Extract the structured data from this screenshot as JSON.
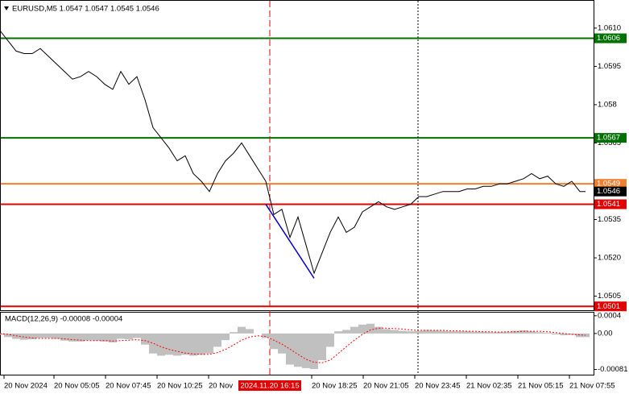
{
  "chart_data": [
    {
      "type": "line",
      "title": "EURUSD,M5  1.0547 1.0547 1.0545 1.0546",
      "xlim": [
        0,
        368.5
      ],
      "ylim": [
        1.04995,
        1.0621
      ],
      "yticks": [
        {
          "value": 1.061,
          "label": "1.0610"
        },
        1.0595,
        1.058,
        1.0565,
        1.0535,
        {
          "value": 1.052,
          "label": "1.0520"
        },
        1.0505
      ],
      "xticks": [
        {
          "value": 2.5,
          "label": "20 Nov 2024"
        },
        {
          "value": 33.5,
          "label": "20 Nov 05:05"
        },
        {
          "value": 65.5,
          "label": "20 Nov 07:45"
        },
        {
          "value": 97.5,
          "label": "20 Nov 10:25"
        },
        {
          "value": 129.5,
          "label": "20 Nov"
        },
        {
          "value": 193.5,
          "label": "20 Nov 18:25"
        },
        {
          "value": 225.5,
          "label": "20 Nov 21:05"
        },
        {
          "value": 257.5,
          "label": "20 Nov 23:45"
        },
        {
          "value": 289.5,
          "label": "21 Nov 02:35"
        },
        {
          "value": 321.5,
          "label": "21 Nov 05:15"
        },
        {
          "value": 353.5,
          "label": "21 Nov 07:55"
        }
      ],
      "x": [
        0,
        5,
        10,
        15,
        20,
        25,
        30,
        35,
        40,
        45,
        50,
        55,
        60,
        65,
        70,
        75,
        80,
        85,
        90,
        95,
        100,
        105,
        110,
        115,
        120,
        125,
        130,
        135,
        140,
        145,
        150,
        155,
        160,
        165,
        170,
        175,
        180,
        185,
        190,
        195,
        200,
        205,
        210,
        215,
        220,
        225,
        230,
        235,
        240,
        245,
        250,
        255,
        260,
        265,
        270,
        275,
        280,
        285,
        290,
        295,
        300,
        305,
        310,
        315,
        320,
        325,
        330,
        335,
        340,
        345,
        350,
        355,
        360,
        363.5
      ],
      "series": [
        {
          "color": "#000000",
          "values": [
            1.0609,
            1.0605,
            1.0601,
            1.06,
            1.06,
            1.0602,
            1.0599,
            1.0596,
            1.0593,
            1.059,
            1.0591,
            1.0593,
            1.0591,
            1.0588,
            1.0586,
            1.0593,
            1.0588,
            1.0591,
            1.0582,
            1.0571,
            1.0567,
            1.0563,
            1.0558,
            1.056,
            1.0553,
            1.055,
            1.0546,
            1.0553,
            1.0558,
            1.0561,
            1.0565,
            1.056,
            1.0555,
            1.055,
            1.0537,
            1.0539,
            1.0528,
            1.0536,
            1.0525,
            1.0514,
            1.0522,
            1.053,
            1.0536,
            1.053,
            1.0532,
            1.0538,
            1.054,
            1.0542,
            1.054,
            1.0539,
            1.054,
            1.0541,
            1.0544,
            1.0544,
            1.0545,
            1.0546,
            1.0546,
            1.0546,
            1.0547,
            1.0547,
            1.0548,
            1.0548,
            1.0549,
            1.0549,
            1.055,
            1.0551,
            1.0553,
            1.0551,
            1.0552,
            1.0549,
            1.0548,
            1.055,
            1.0546,
            1.0546
          ]
        }
      ],
      "levels": [
        {
          "value": 1.0606,
          "color": "#007000"
        },
        {
          "value": 1.0567,
          "color": "#007000"
        },
        {
          "value": 1.0549,
          "color": "#f08030"
        },
        {
          "value": 1.0541,
          "color": "#e00000"
        },
        {
          "value": 1.0501,
          "color": "#e00000"
        }
      ],
      "current_price": 1.0546,
      "vlines": [
        {
          "value": 167.5,
          "color": "#e00000",
          "style": "dashed",
          "label": "2024.11.20 16:15"
        },
        {
          "value": 259.5,
          "color": "#000000",
          "style": "dotted"
        }
      ],
      "trendline": {
        "x": [
          165,
          195
        ],
        "values": [
          1.0541,
          1.0512
        ],
        "color": "#0000cc"
      }
    },
    {
      "type": "bar",
      "title": "MACD(12,26,9) -0.00008 -0.00004",
      "xlim": [
        0,
        368.5
      ],
      "ylim": [
        -0.000927,
        0.00047
      ],
      "yticks": [
        0.0004,
        {
          "value": 0,
          "label": "0.00"
        },
        -0.00081
      ],
      "x": [
        0,
        5,
        10,
        15,
        20,
        25,
        30,
        35,
        40,
        45,
        50,
        55,
        60,
        65,
        70,
        75,
        80,
        85,
        90,
        95,
        100,
        105,
        110,
        115,
        120,
        125,
        130,
        135,
        140,
        145,
        150,
        155,
        160,
        165,
        170,
        175,
        180,
        185,
        190,
        195,
        200,
        205,
        210,
        215,
        220,
        225,
        230,
        235,
        240,
        245,
        250,
        255,
        260,
        265,
        270,
        275,
        280,
        285,
        290,
        295,
        300,
        305,
        310,
        315,
        320,
        325,
        330,
        335,
        340,
        345,
        350,
        355,
        360,
        363.5
      ],
      "series": [
        {
          "type": "bar",
          "color": "#c0c0c0",
          "values": [
            -3e-05,
            -8e-05,
            -0.00012,
            -0.00014,
            -0.00013,
            -0.0001,
            -0.0001,
            -0.00012,
            -0.00016,
            -0.00018,
            -0.00018,
            -0.00015,
            -0.00016,
            -0.00018,
            -0.0002,
            -0.00012,
            -0.00013,
            -0.0001,
            -0.00025,
            -0.00045,
            -0.0005,
            -0.00048,
            -0.0005,
            -0.00048,
            -0.0005,
            -0.00048,
            -0.00045,
            -0.0003,
            -0.00015,
            3e-05,
            0.00015,
            0.0001,
            0,
            -0.0001,
            -0.00035,
            -0.00045,
            -0.0007,
            -0.00075,
            -0.00078,
            -0.0008,
            -0.0006,
            -0.0003,
            5e-05,
            8e-05,
            0.00015,
            0.0002,
            0.00022,
            0.00015,
            0.0001,
            8e-05,
            6e-05,
            5e-05,
            6e-05,
            8e-05,
            7e-05,
            6e-05,
            5e-05,
            5e-05,
            5e-05,
            4e-05,
            4e-05,
            3e-05,
            3e-05,
            4e-05,
            6e-05,
            7e-05,
            5e-05,
            3e-05,
            2e-05,
            -2e-05,
            -4e-05,
            -3e-05,
            -8e-05,
            -8e-05
          ]
        },
        {
          "type": "line",
          "color": "#ff0000",
          "style": "dotted",
          "values": [
            0,
            -2e-05,
            -5e-05,
            -8e-05,
            -0.0001,
            -0.00011,
            -0.00011,
            -0.00011,
            -0.00012,
            -0.00014,
            -0.00015,
            -0.00016,
            -0.00016,
            -0.00016,
            -0.00017,
            -0.00016,
            -0.00015,
            -0.00014,
            -0.00016,
            -0.00022,
            -0.0003,
            -0.00036,
            -0.0004,
            -0.00044,
            -0.00046,
            -0.00047,
            -0.00047,
            -0.00043,
            -0.00036,
            -0.00026,
            -0.00015,
            -8e-05,
            -5e-05,
            -7e-05,
            -0.00015,
            -0.00024,
            -0.00035,
            -0.00047,
            -0.00058,
            -0.00065,
            -0.00066,
            -0.0006,
            -0.00045,
            -0.0003,
            -0.00015,
            -2e-05,
            8e-05,
            0.00012,
            0.00012,
            0.00011,
            0.0001,
            8e-05,
            7e-05,
            7e-05,
            7e-05,
            7e-05,
            6e-05,
            6e-05,
            5e-05,
            5e-05,
            4e-05,
            4e-05,
            3e-05,
            4e-05,
            4e-05,
            5e-05,
            5e-05,
            5e-05,
            4e-05,
            2e-05,
            0,
            -2e-05,
            -3e-05,
            -4e-05
          ]
        }
      ]
    }
  ]
}
